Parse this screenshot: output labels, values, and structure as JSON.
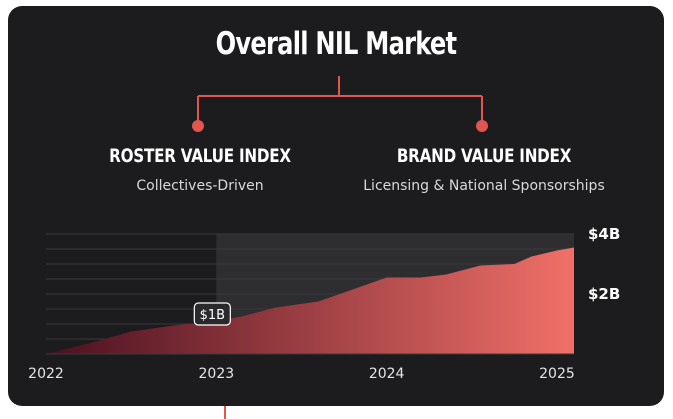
{
  "title": "Overall NIL Market",
  "left_branch": {
    "heading": "ROSTER VALUE INDEX",
    "subheading": "Collectives-Driven"
  },
  "right_branch": {
    "heading": "BRAND VALUE INDEX",
    "subheading": "Licensing & National Sponsorships"
  },
  "colors": {
    "background": "#1c1c1e",
    "accent": "#e2564f",
    "area_start": "#4a1020",
    "area_end": "#f07068",
    "highlight_region": "#2e2e30",
    "text": "#ffffff"
  },
  "chart_data": {
    "type": "area",
    "x_tick_labels": [
      "2022",
      "2023",
      "2024",
      "2025"
    ],
    "y_tick_labels": [
      "$4B",
      "$2B"
    ],
    "ylim": [
      0,
      4
    ],
    "x": [
      2022.0,
      2022.25,
      2022.5,
      2022.75,
      2023.0,
      2023.15,
      2023.35,
      2023.6,
      2023.8,
      2024.0,
      2024.2,
      2024.35,
      2024.55,
      2024.75,
      2024.85,
      2025.0,
      2025.1
    ],
    "y": [
      0.0,
      0.35,
      0.75,
      0.95,
      1.1,
      1.25,
      1.55,
      1.75,
      2.15,
      2.55,
      2.55,
      2.65,
      2.95,
      3.0,
      3.25,
      3.45,
      3.55
    ],
    "annotations": [
      {
        "label": "$1B",
        "x": 2023.0,
        "y": 1.1
      }
    ],
    "highlight_from_x": 2023.0,
    "grid": true
  }
}
